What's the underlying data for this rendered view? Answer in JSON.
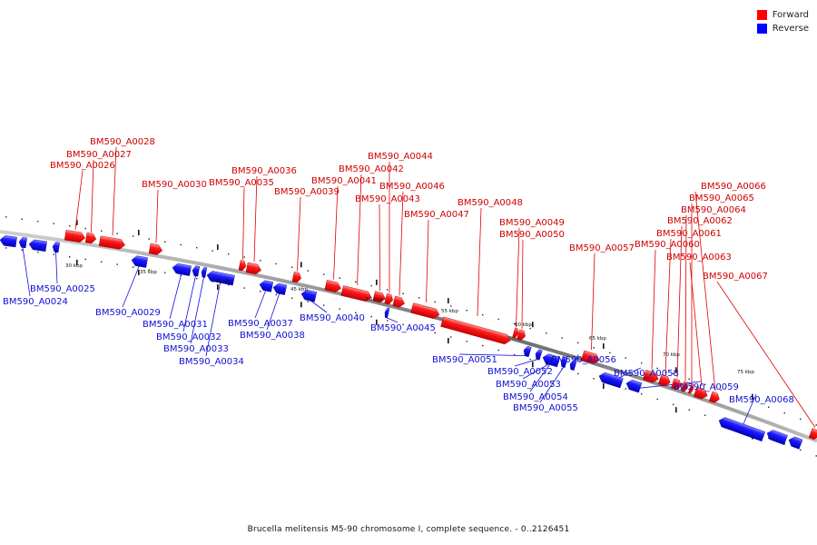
{
  "legend": {
    "forward_label": "Forward",
    "reverse_label": "Reverse",
    "forward_color": "#ff0000",
    "reverse_color": "#0000ff"
  },
  "caption": "Brucella melitensis M5-90 chromosome I, complete sequence. - 0..2126451",
  "scale_labels": [
    "30 kbp",
    "35 kbp",
    "40 kbp",
    "45 kbp",
    "50 kbp",
    "55 kbp",
    "60 kbp",
    "65 kbp",
    "70 kbp",
    "75 kbp"
  ],
  "forward_genes": [
    "BM590_A0026",
    "BM590_A0027",
    "BM590_A0028",
    "BM590_A0030",
    "BM590_A0035",
    "BM590_A0036",
    "BM590_A0039",
    "BM590_A0041",
    "BM590_A0042",
    "BM590_A0043",
    "BM590_A0044",
    "BM590_A0046",
    "BM590_A0047",
    "BM590_A0048",
    "BM590_A0049",
    "BM590_A0050",
    "BM590_A0057",
    "BM590_A0060",
    "BM590_A0061",
    "BM590_A0062",
    "BM590_A0063",
    "BM590_A0064",
    "BM590_A0065",
    "BM590_A0066",
    "BM590_A0067"
  ],
  "reverse_genes": [
    "BM590_A0024",
    "BM590_A0025",
    "BM590_A0029",
    "BM590_A0031",
    "BM590_A0032",
    "BM590_A0033",
    "BM590_A0034",
    "BM590_A0037",
    "BM590_A0038",
    "BM590_A0040",
    "BM590_A0045",
    "BM590_A0051",
    "BM590_A0052",
    "BM590_A0053",
    "BM590_A0054",
    "BM590_A0055",
    "BM590_A0056",
    "BM590_A0058",
    "BM590_A0059",
    "BM590_A0068"
  ]
}
